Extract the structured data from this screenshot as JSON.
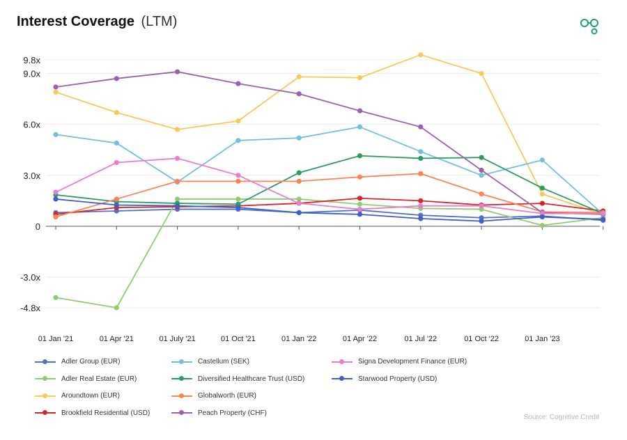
{
  "header": {
    "title": "Interest Coverage",
    "subtitle": "(LTM)",
    "logo_icon": "cognitive-credit-logo"
  },
  "source": "Source: Cognitive Credit",
  "chart_data": {
    "type": "line",
    "title": "Interest Coverage",
    "subtitle": "(LTM)",
    "xlabel": "",
    "ylabel": "",
    "grid": true,
    "legend_position": "bottom",
    "ylim": [
      -4.8,
      9.8
    ],
    "y_ticks": [
      {
        "value": 9.8,
        "label": "9.8x"
      },
      {
        "value": 9.0,
        "label": "9.0x"
      },
      {
        "value": 6.0,
        "label": "6.0x"
      },
      {
        "value": 3.0,
        "label": "3.0x"
      },
      {
        "value": 0,
        "label": "0"
      },
      {
        "value": -3.0,
        "label": "-3.0x"
      },
      {
        "value": -4.8,
        "label": "-4.8x"
      }
    ],
    "categories": [
      "01 Jan '21",
      "01 Apr '21",
      "01 July '21",
      "01 Oct '21",
      "01 Jan '22",
      "01 Apr '22",
      "01 Jul '22",
      "01 Oct '22",
      "01 Jan '23",
      ""
    ],
    "series": [
      {
        "name": "Adler Group (EUR)",
        "color": "#5470c6",
        "values": [
          0.8,
          0.9,
          1.0,
          1.0,
          0.8,
          0.95,
          0.65,
          0.5,
          0.6,
          0.35
        ]
      },
      {
        "name": "Adler Real Estate (EUR)",
        "color": "#91cc75",
        "values": [
          -4.2,
          -4.8,
          1.6,
          1.6,
          1.6,
          1.3,
          1.05,
          1.0,
          0.05,
          0.5
        ]
      },
      {
        "name": "Aroundtown (EUR)",
        "color": "#fac858",
        "values": [
          7.9,
          6.7,
          5.7,
          6.2,
          8.8,
          8.75,
          10.1,
          9.0,
          1.9,
          0.7
        ]
      },
      {
        "name": "Brookfield Residential (USD)",
        "color": "#d62728",
        "values": [
          0.7,
          1.1,
          1.15,
          1.2,
          1.35,
          1.65,
          1.5,
          1.25,
          1.35,
          0.9
        ]
      },
      {
        "name": "Castellum (SEK)",
        "color": "#73c0de",
        "values": [
          5.4,
          4.9,
          2.6,
          5.05,
          5.2,
          5.85,
          4.4,
          3.0,
          3.9,
          0.7
        ]
      },
      {
        "name": "Diversified Healthcare Trust (USD)",
        "color": "#2a9d63",
        "values": [
          1.85,
          1.45,
          1.35,
          1.3,
          3.15,
          4.15,
          4.0,
          4.05,
          2.25,
          0.75
        ]
      },
      {
        "name": "Globalworth (EUR)",
        "color": "#fc8452",
        "values": [
          0.55,
          1.6,
          2.65,
          2.65,
          2.65,
          2.9,
          3.1,
          1.9,
          0.85,
          0.8
        ]
      },
      {
        "name": "Peach Property (CHF)",
        "color": "#9a60b4",
        "values": [
          8.2,
          8.7,
          9.1,
          8.4,
          7.8,
          6.8,
          5.85,
          3.3,
          0.8,
          0.7
        ]
      },
      {
        "name": "Signa Development Finance (EUR)",
        "color": "#ea7ccc",
        "values": [
          2.0,
          3.75,
          4.0,
          3.0,
          1.35,
          1.0,
          1.2,
          1.2,
          0.75,
          0.75
        ]
      },
      {
        "name": "Starwood Property (USD)",
        "color": "#3f5fc6",
        "values": [
          1.6,
          1.25,
          1.2,
          1.1,
          0.8,
          0.7,
          0.45,
          0.3,
          0.55,
          0.4
        ]
      }
    ]
  },
  "legend_order": [
    "Adler Group (EUR)",
    "Adler Real Estate (EUR)",
    "Aroundtown (EUR)",
    "Brookfield Residential (USD)",
    "Castellum (SEK)",
    "Diversified Healthcare Trust (USD)",
    "Globalworth (EUR)",
    "Peach Property (CHF)",
    "Signa Development Finance (EUR)",
    "Starwood Property (USD)"
  ]
}
